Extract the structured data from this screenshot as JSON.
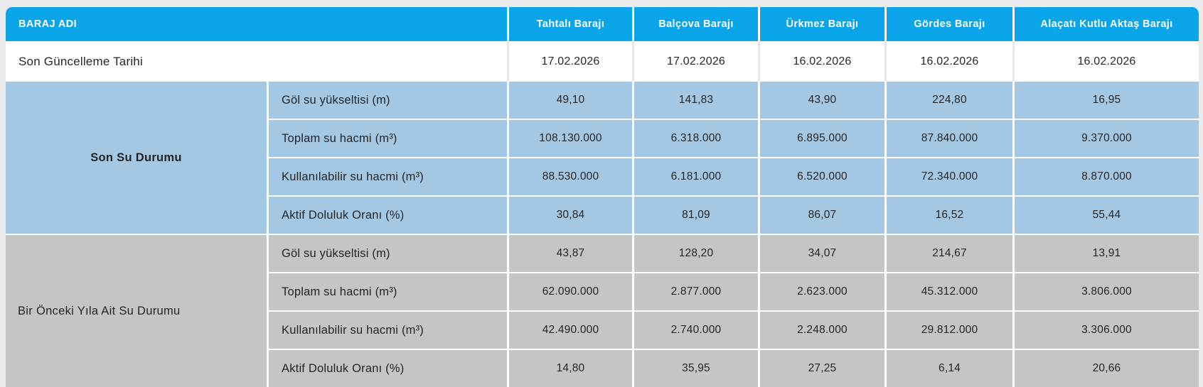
{
  "colors": {
    "header_blue": "#0aa4e8",
    "current_section_blue": "#a4c8e4",
    "previous_section_gray": "#c4c5c6",
    "page_background": "#e9eaec"
  },
  "table": {
    "header": {
      "name_col": "BARAJ ADI",
      "dams": [
        "Tahtalı Barajı",
        "Balçova Barajı",
        "Ürkmez Barajı",
        "Gördes Barajı",
        "Alaçatı Kutlu Aktaş Barajı"
      ]
    },
    "update_row": {
      "label": "Son Güncelleme Tarihi",
      "values": [
        "17.02.2026",
        "17.02.2026",
        "16.02.2026",
        "16.02.2026",
        "16.02.2026"
      ]
    },
    "sections": [
      {
        "label": "Son Su Durumu",
        "rows": [
          {
            "label": "Göl su yükseltisi (m)",
            "values": [
              "49,10",
              "141,83",
              "43,90",
              "224,80",
              "16,95"
            ]
          },
          {
            "label": "Toplam su hacmi (m³)",
            "values": [
              "108.130.000",
              "6.318.000",
              "6.895.000",
              "87.840.000",
              "9.370.000"
            ]
          },
          {
            "label": "Kullanılabilir su hacmi (m³)",
            "values": [
              "88.530.000",
              "6.181.000",
              "6.520.000",
              "72.340.000",
              "8.870.000"
            ]
          },
          {
            "label": "Aktif Doluluk Oranı (%)",
            "values": [
              "30,84",
              "81,09",
              "86,07",
              "16,52",
              "55,44"
            ]
          }
        ]
      },
      {
        "label": "Bir Önceki Yıla Ait Su Durumu",
        "rows": [
          {
            "label": "Göl su yükseltisi (m)",
            "values": [
              "43,87",
              "128,20",
              "34,07",
              "214,67",
              "13,91"
            ]
          },
          {
            "label": "Toplam su hacmi (m³)",
            "values": [
              "62.090.000",
              "2.877.000",
              "2.623.000",
              "45.312.000",
              "3.806.000"
            ]
          },
          {
            "label": "Kullanılabilir su hacmi (m³)",
            "values": [
              "42.490.000",
              "2.740.000",
              "2.248.000",
              "29.812.000",
              "3.306.000"
            ]
          },
          {
            "label": "Aktif Doluluk Oranı (%)",
            "values": [
              "14,80",
              "35,95",
              "27,25",
              "6,14",
              "20,66"
            ]
          }
        ]
      }
    ]
  }
}
